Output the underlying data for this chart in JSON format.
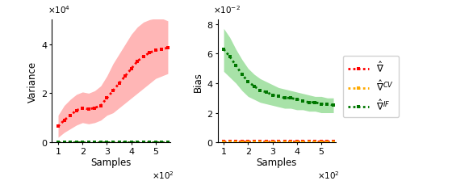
{
  "x_samples": [
    100,
    125,
    150,
    175,
    200,
    225,
    250,
    275,
    300,
    325,
    350,
    375,
    400,
    425,
    450,
    475,
    500,
    525,
    550
  ],
  "var_red_mean": [
    6500,
    9000,
    11000,
    13000,
    14000,
    13500,
    14000,
    15000,
    18000,
    21000,
    24000,
    27000,
    30000,
    33000,
    35000,
    36500,
    37500,
    38000,
    38500
  ],
  "var_red_upper": [
    11000,
    15000,
    17500,
    19500,
    20500,
    20000,
    21000,
    23000,
    27000,
    32000,
    36000,
    40000,
    44000,
    47000,
    49000,
    50000,
    50500,
    50500,
    49500
  ],
  "var_red_lower": [
    2000,
    4000,
    5500,
    7000,
    8000,
    7500,
    8000,
    9000,
    11000,
    12000,
    14000,
    16000,
    18000,
    20000,
    22000,
    24000,
    26000,
    27000,
    28000
  ],
  "var_orange_mean": [
    150,
    150,
    150,
    150,
    150,
    150,
    150,
    150,
    150,
    150,
    150,
    150,
    150,
    150,
    150,
    150,
    150,
    150,
    150
  ],
  "var_green_mean": [
    50,
    50,
    50,
    50,
    50,
    50,
    50,
    50,
    50,
    50,
    50,
    50,
    50,
    50,
    50,
    50,
    50,
    50,
    50
  ],
  "bias_green_mean": [
    0.063,
    0.058,
    0.052,
    0.046,
    0.041,
    0.038,
    0.035,
    0.034,
    0.032,
    0.031,
    0.03,
    0.03,
    0.029,
    0.028,
    0.027,
    0.027,
    0.026,
    0.026,
    0.025
  ],
  "bias_green_upper": [
    0.077,
    0.071,
    0.063,
    0.056,
    0.05,
    0.046,
    0.043,
    0.041,
    0.039,
    0.037,
    0.036,
    0.035,
    0.034,
    0.033,
    0.032,
    0.031,
    0.031,
    0.03,
    0.03
  ],
  "bias_green_lower": [
    0.048,
    0.044,
    0.04,
    0.035,
    0.031,
    0.029,
    0.027,
    0.026,
    0.025,
    0.024,
    0.023,
    0.023,
    0.022,
    0.022,
    0.021,
    0.021,
    0.02,
    0.02,
    0.02
  ],
  "bias_red_mean": [
    0.0005,
    0.0005,
    0.0005,
    0.0005,
    0.0005,
    0.0005,
    0.0005,
    0.0005,
    0.0005,
    0.0005,
    0.0005,
    0.0005,
    0.0005,
    0.0005,
    0.0005,
    0.0005,
    0.0005,
    0.0005,
    0.0005
  ],
  "bias_orange_mean": [
    0.0003,
    0.0003,
    0.0003,
    0.0003,
    0.0003,
    0.0003,
    0.0003,
    0.0003,
    0.0003,
    0.0003,
    0.0003,
    0.0003,
    0.0003,
    0.0003,
    0.0003,
    0.0003,
    0.0003,
    0.0003,
    0.0003
  ],
  "color_red": "#ff0000",
  "color_red_fill": "#ffaaaa",
  "color_orange": "#ffaa00",
  "color_green": "#007700",
  "color_green_fill": "#99dd99",
  "var_ylim": [
    0,
    50000
  ],
  "var_yticks": [
    0,
    20000,
    40000
  ],
  "var_yticklabels": [
    "0",
    "2",
    "4"
  ],
  "bias_ylim": [
    0,
    0.083
  ],
  "bias_yticks": [
    0,
    0.02,
    0.04,
    0.06,
    0.08
  ],
  "bias_yticklabels": [
    "0",
    "2",
    "4",
    "6",
    "8"
  ],
  "xlim": [
    75,
    560
  ],
  "xticks": [
    100,
    200,
    300,
    400,
    500
  ],
  "xticklabels": [
    "1",
    "2",
    "3",
    "4",
    "5"
  ],
  "ylabel_var": "Variance",
  "ylabel_bias": "Bias",
  "xlabel": "Samples"
}
